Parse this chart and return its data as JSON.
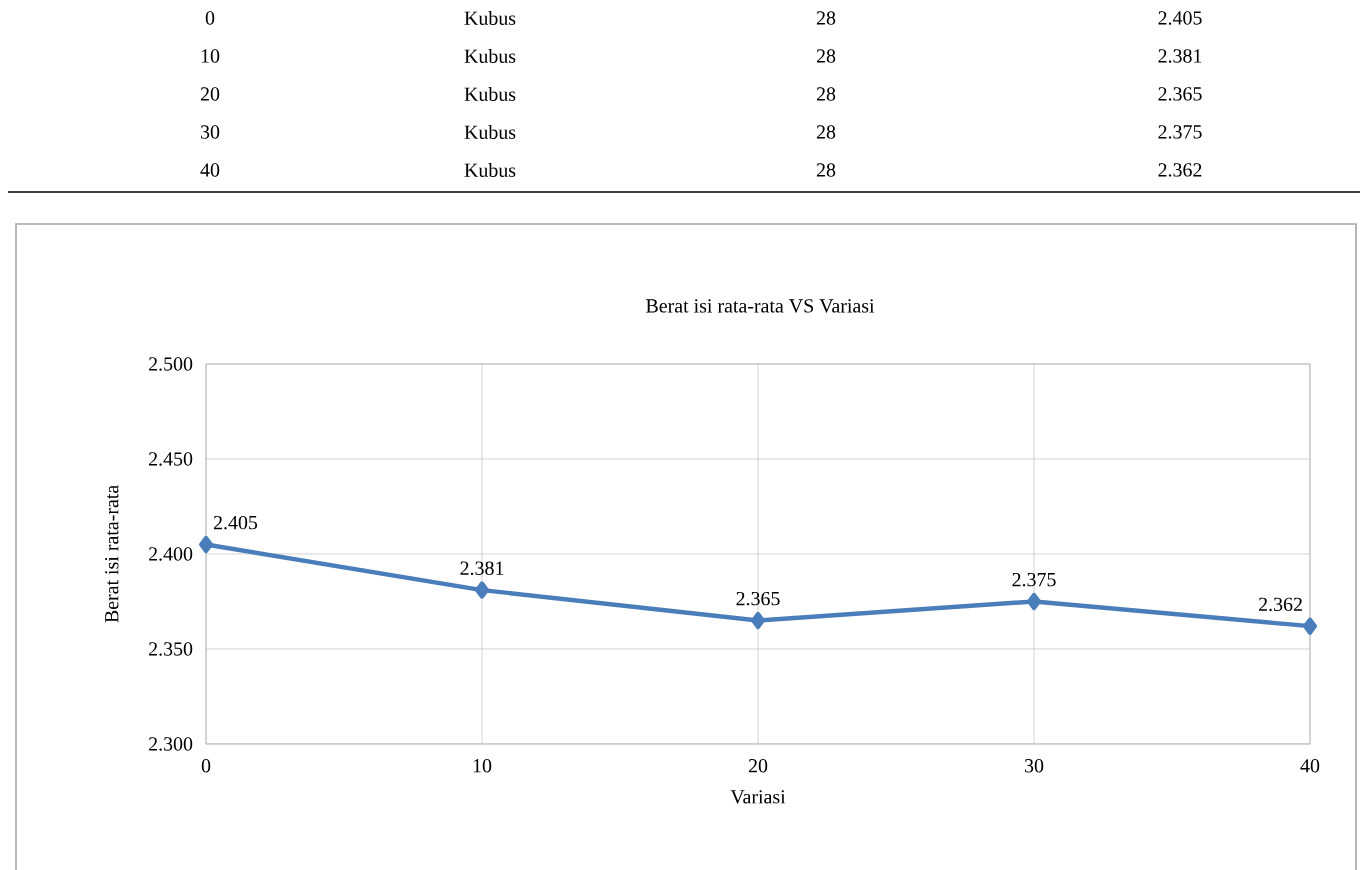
{
  "chart_data": {
    "type": "line",
    "title": "Berat isi rata-rata VS Variasi",
    "xlabel": "Variasi",
    "ylabel": "Berat isi rata-rata",
    "x": [
      0,
      10,
      20,
      30,
      40
    ],
    "values": [
      2.405,
      2.381,
      2.365,
      2.375,
      2.362
    ],
    "color": "#4a7ebb",
    "marker": "diamond",
    "line_style": "solid",
    "grid": true,
    "data_labels": true,
    "xlim": [
      0,
      40
    ],
    "xticks": [
      0,
      10,
      20,
      30,
      40
    ],
    "ylim": [
      2.3,
      2.5
    ],
    "yticks": [
      {
        "value": 2.3,
        "label": "2.300"
      },
      {
        "value": 2.35,
        "label": "2.350"
      },
      {
        "value": 2.4,
        "label": "2.400"
      },
      {
        "value": 2.45,
        "label": "2.450"
      },
      {
        "value": 2.5,
        "label": "2.500"
      }
    ],
    "annotations": [
      "0",
      "Kubus",
      "28",
      "2.405",
      "10",
      "Kubus",
      "28",
      "2.381",
      "20",
      "Kubus",
      "28",
      "2.365",
      "30",
      "Kubus",
      "28",
      "2.375",
      "40",
      "Kubus",
      "28",
      "2.362"
    ]
  }
}
